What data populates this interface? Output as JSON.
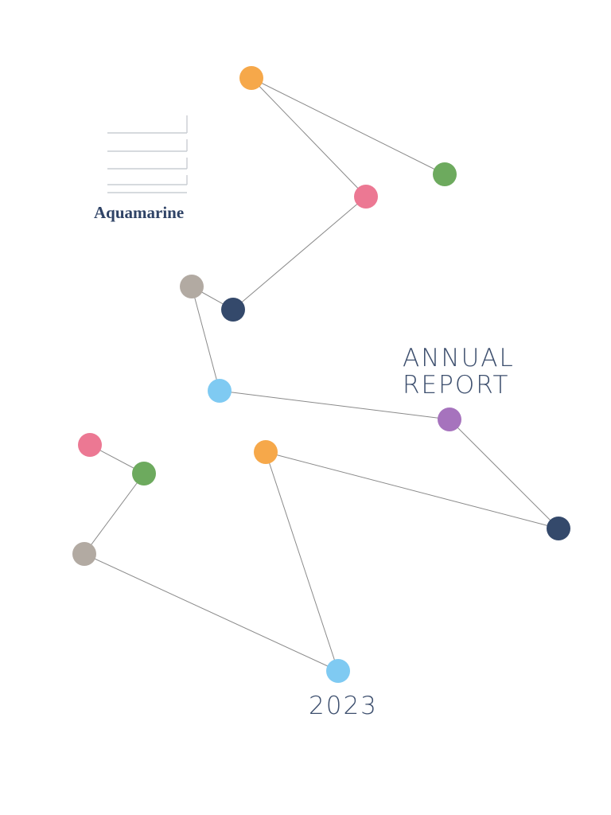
{
  "brand": "Aquamarine",
  "title": {
    "line1": "ANNUAL",
    "line2": "REPORT"
  },
  "year": "2023"
}
